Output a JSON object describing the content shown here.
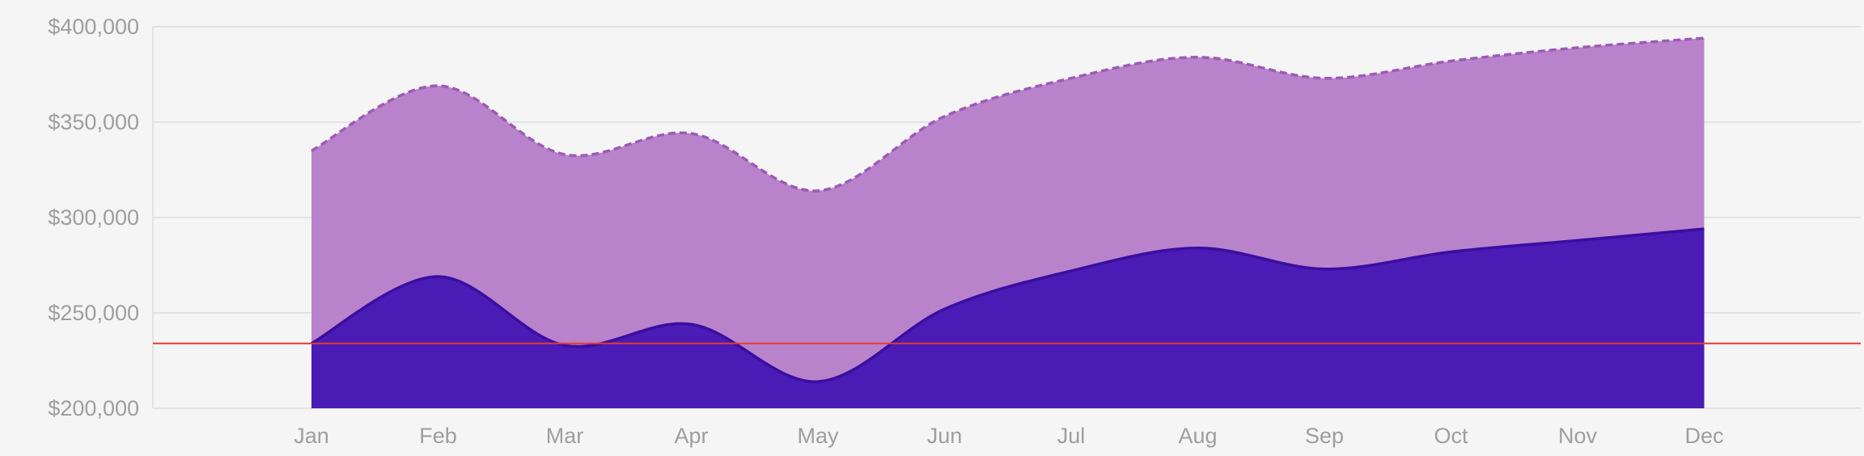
{
  "chart_data": {
    "type": "area",
    "categories": [
      "Jan",
      "Feb",
      "Mar",
      "Apr",
      "May",
      "Jun",
      "Jul",
      "Aug",
      "Sep",
      "Oct",
      "Nov",
      "Dec"
    ],
    "series": [
      {
        "values": [
          335000,
          369000,
          333000,
          344000,
          314000,
          353000,
          373000,
          384000,
          373000,
          382000,
          389000,
          394000
        ],
        "color": "#b983cb",
        "line_color": "#9c5ab6",
        "line_style": "dashed"
      },
      {
        "values": [
          234000,
          269000,
          233000,
          244000,
          214000,
          252000,
          272000,
          284000,
          273000,
          282000,
          288000,
          294000
        ],
        "color": "#4a1bb5",
        "line_color": "#3a0ea0",
        "line_style": "solid"
      }
    ],
    "reference_line": {
      "value": 234000,
      "color": "#e53935"
    },
    "ylim": [
      200000,
      400000
    ],
    "y_ticks": [
      200000,
      250000,
      300000,
      350000,
      400000
    ],
    "y_tick_labels": [
      "$200,000",
      "$250,000",
      "$300,000",
      "$350,000",
      "$400,000"
    ],
    "grid": true,
    "legend": "none",
    "title": "",
    "xlabel": "",
    "ylabel": ""
  }
}
